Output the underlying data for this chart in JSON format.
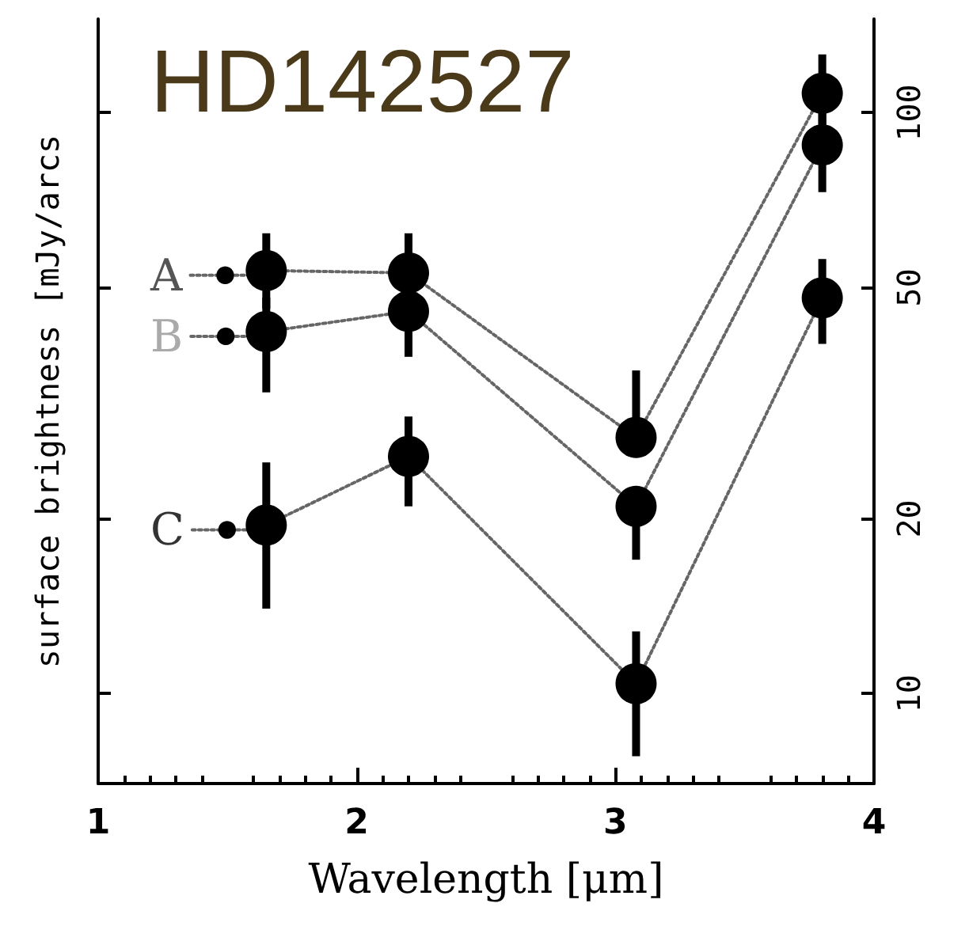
{
  "chart_data": {
    "type": "line",
    "title": "HD142527",
    "xlabel": "Wavelength [μm]",
    "ylabel": "surface brightness [mJy/arcs",
    "log": "y",
    "xlim": [
      1,
      4
    ],
    "xticks": [
      1,
      2,
      3,
      4
    ],
    "ylim": [
      7,
      145
    ],
    "yticks": [
      10,
      20,
      50,
      100
    ],
    "grid": false,
    "legend": "left",
    "marker": "circle",
    "line_style": "dotted",
    "x": [
      1.65,
      2.2,
      3.08,
      3.8
    ],
    "series": [
      {
        "name": "A",
        "color": "#000000",
        "values": [
          53.5,
          53,
          27.6,
          108
        ],
        "errors": [
          [
            46,
            62
          ],
          [
            53,
            62
          ],
          [
            27.6,
            36
          ],
          [
            94,
            126
          ]
        ]
      },
      {
        "name": "B",
        "color": "#000000",
        "values": [
          42,
          45.5,
          21,
          88
        ],
        "errors": [
          [
            33,
            48
          ],
          [
            38,
            45.5
          ],
          [
            17,
            21
          ],
          [
            73,
            100
          ]
        ]
      },
      {
        "name": "C",
        "color": "#000000",
        "values": [
          19.5,
          25.6,
          10.4,
          48
        ],
        "errors": [
          [
            14,
            25
          ],
          [
            21,
            30
          ],
          [
            7.8,
            12.8
          ],
          [
            40,
            56
          ]
        ]
      }
    ]
  }
}
